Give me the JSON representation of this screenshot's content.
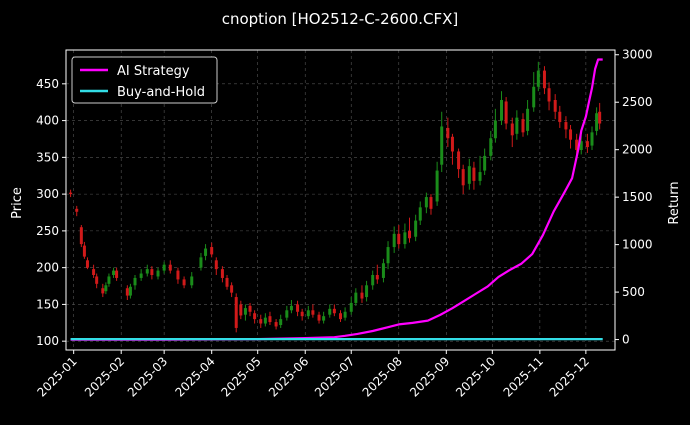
{
  "chart_data": {
    "type": "candlestick+line",
    "title": "cnoption [HO2512-C-2600.CFX]",
    "ylabel_left": "Price",
    "ylabel_right": "Return",
    "ylim_left": [
      88,
      496
    ],
    "ylim_right": [
      -110,
      3050
    ],
    "xlim": [
      "2024-12-27",
      "2025-12-20"
    ],
    "x_ticks": [
      "2025-01",
      "2025-02",
      "2025-03",
      "2025-04",
      "2025-05",
      "2025-06",
      "2025-07",
      "2025-08",
      "2025-09",
      "2025-10",
      "2025-11",
      "2025-12"
    ],
    "y_ticks_left": [
      100,
      150,
      200,
      250,
      300,
      350,
      400,
      450
    ],
    "y_ticks_right": [
      0,
      500,
      1000,
      1500,
      2000,
      2500,
      3000
    ],
    "grid": true,
    "legend_position": "top-left",
    "colors": {
      "up": "#1a8c1a",
      "down": "#d11a1a",
      "strategy": "#ff00ff",
      "buyhold": "#33dde6",
      "grid": "#555555",
      "background": "#000000"
    },
    "series": [
      {
        "name": "AI Strategy",
        "points": [
          [
            "2024-12-30",
            0
          ],
          [
            "2025-03-01",
            0
          ],
          [
            "2025-05-01",
            5
          ],
          [
            "2025-06-01",
            15
          ],
          [
            "2025-06-20",
            25
          ],
          [
            "2025-06-27",
            40
          ],
          [
            "2025-07-05",
            60
          ],
          [
            "2025-07-15",
            90
          ],
          [
            "2025-07-25",
            130
          ],
          [
            "2025-08-01",
            160
          ],
          [
            "2025-08-10",
            175
          ],
          [
            "2025-08-20",
            200
          ],
          [
            "2025-08-28",
            260
          ],
          [
            "2025-09-05",
            330
          ],
          [
            "2025-09-12",
            400
          ],
          [
            "2025-09-20",
            480
          ],
          [
            "2025-09-28",
            560
          ],
          [
            "2025-10-05",
            660
          ],
          [
            "2025-10-12",
            730
          ],
          [
            "2025-10-20",
            800
          ],
          [
            "2025-10-27",
            900
          ],
          [
            "2025-11-03",
            1100
          ],
          [
            "2025-11-10",
            1350
          ],
          [
            "2025-11-17",
            1550
          ],
          [
            "2025-11-22",
            1700
          ],
          [
            "2025-11-26",
            2000
          ],
          [
            "2025-11-28",
            2200
          ],
          [
            "2025-12-01",
            2350
          ],
          [
            "2025-12-03",
            2500
          ],
          [
            "2025-12-05",
            2650
          ],
          [
            "2025-12-07",
            2850
          ],
          [
            "2025-12-09",
            2950
          ],
          [
            "2025-12-12",
            2950
          ]
        ]
      },
      {
        "name": "Buy-and-Hold",
        "points": [
          [
            "2024-12-30",
            5
          ],
          [
            "2025-12-12",
            5
          ]
        ]
      }
    ],
    "candles": [
      [
        "2024-12-30",
        302,
        300,
        306,
        296
      ],
      [
        "2025-01-03",
        280,
        276,
        284,
        270
      ],
      [
        "2025-01-06",
        255,
        232,
        258,
        228
      ],
      [
        "2025-01-08",
        230,
        215,
        235,
        212
      ],
      [
        "2025-01-10",
        210,
        200,
        214,
        198
      ],
      [
        "2025-01-14",
        198,
        190,
        204,
        186
      ],
      [
        "2025-01-16",
        188,
        178,
        192,
        172
      ],
      [
        "2025-01-20",
        172,
        165,
        178,
        160
      ],
      [
        "2025-01-22",
        168,
        176,
        180,
        164
      ],
      [
        "2025-01-24",
        178,
        188,
        192,
        174
      ],
      [
        "2025-01-27",
        190,
        196,
        200,
        186
      ],
      [
        "2025-01-29",
        196,
        186,
        200,
        182
      ],
      [
        "2025-02-05",
        172,
        162,
        176,
        156
      ],
      [
        "2025-02-07",
        162,
        174,
        178,
        158
      ],
      [
        "2025-02-10",
        176,
        186,
        190,
        170
      ],
      [
        "2025-02-14",
        186,
        192,
        198,
        182
      ],
      [
        "2025-02-18",
        192,
        198,
        204,
        188
      ],
      [
        "2025-02-21",
        198,
        190,
        202,
        184
      ],
      [
        "2025-02-25",
        188,
        196,
        200,
        184
      ],
      [
        "2025-03-01",
        196,
        204,
        208,
        192
      ],
      [
        "2025-03-05",
        204,
        196,
        210,
        192
      ],
      [
        "2025-03-10",
        196,
        184,
        200,
        178
      ],
      [
        "2025-03-14",
        184,
        176,
        188,
        172
      ],
      [
        "2025-03-19",
        176,
        188,
        194,
        172
      ],
      [
        "2025-03-25",
        200,
        214,
        220,
        196
      ],
      [
        "2025-03-28",
        216,
        226,
        232,
        210
      ],
      [
        "2025-04-01",
        228,
        218,
        234,
        214
      ],
      [
        "2025-04-04",
        210,
        198,
        214,
        190
      ],
      [
        "2025-04-08",
        198,
        186,
        202,
        180
      ],
      [
        "2025-04-11",
        186,
        174,
        190,
        170
      ],
      [
        "2025-04-14",
        176,
        166,
        180,
        160
      ],
      [
        "2025-04-17",
        160,
        118,
        165,
        112
      ],
      [
        "2025-04-20",
        150,
        135,
        155,
        130
      ],
      [
        "2025-04-23",
        136,
        145,
        150,
        128
      ],
      [
        "2025-04-26",
        148,
        140,
        152,
        134
      ],
      [
        "2025-04-29",
        138,
        130,
        142,
        124
      ],
      [
        "2025-05-03",
        130,
        124,
        136,
        118
      ],
      [
        "2025-05-06",
        124,
        132,
        138,
        120
      ],
      [
        "2025-05-09",
        134,
        126,
        140,
        122
      ],
      [
        "2025-05-13",
        126,
        120,
        130,
        116
      ],
      [
        "2025-05-16",
        122,
        130,
        136,
        118
      ],
      [
        "2025-05-20",
        132,
        142,
        148,
        128
      ],
      [
        "2025-05-23",
        142,
        148,
        156,
        138
      ],
      [
        "2025-05-27",
        150,
        140,
        155,
        134
      ],
      [
        "2025-05-30",
        140,
        134,
        144,
        128
      ],
      [
        "2025-06-03",
        134,
        142,
        148,
        130
      ],
      [
        "2025-06-06",
        142,
        136,
        150,
        132
      ],
      [
        "2025-06-10",
        136,
        128,
        140,
        124
      ],
      [
        "2025-06-13",
        128,
        134,
        140,
        124
      ],
      [
        "2025-06-17",
        136,
        144,
        150,
        132
      ],
      [
        "2025-06-20",
        144,
        138,
        150,
        134
      ],
      [
        "2025-06-24",
        138,
        130,
        142,
        126
      ],
      [
        "2025-06-27",
        132,
        140,
        146,
        128
      ],
      [
        "2025-07-01",
        140,
        152,
        160,
        136
      ],
      [
        "2025-07-04",
        152,
        166,
        172,
        148
      ],
      [
        "2025-07-08",
        166,
        158,
        176,
        152
      ],
      [
        "2025-07-11",
        160,
        176,
        182,
        154
      ],
      [
        "2025-07-15",
        176,
        190,
        196,
        170
      ],
      [
        "2025-07-18",
        190,
        184,
        204,
        178
      ],
      [
        "2025-07-22",
        186,
        206,
        212,
        180
      ],
      [
        "2025-07-25",
        206,
        228,
        236,
        198
      ],
      [
        "2025-07-29",
        228,
        246,
        256,
        220
      ],
      [
        "2025-08-01",
        246,
        232,
        258,
        226
      ],
      [
        "2025-08-05",
        232,
        248,
        260,
        226
      ],
      [
        "2025-08-08",
        250,
        240,
        268,
        234
      ],
      [
        "2025-08-12",
        242,
        264,
        272,
        236
      ],
      [
        "2025-08-15",
        264,
        282,
        290,
        258
      ],
      [
        "2025-08-19",
        282,
        296,
        302,
        274
      ],
      [
        "2025-08-22",
        296,
        280,
        300,
        272
      ],
      [
        "2025-08-26",
        290,
        332,
        344,
        284
      ],
      [
        "2025-08-29",
        340,
        392,
        412,
        330
      ],
      [
        "2025-09-02",
        390,
        376,
        404,
        364
      ],
      [
        "2025-09-05",
        378,
        358,
        382,
        340
      ],
      [
        "2025-09-09",
        358,
        334,
        362,
        322
      ],
      [
        "2025-09-12",
        334,
        312,
        340,
        300
      ],
      [
        "2025-09-16",
        314,
        338,
        348,
        306
      ],
      [
        "2025-09-19",
        336,
        318,
        344,
        306
      ],
      [
        "2025-09-23",
        318,
        330,
        352,
        312
      ],
      [
        "2025-09-26",
        332,
        352,
        362,
        326
      ],
      [
        "2025-09-30",
        352,
        376,
        386,
        346
      ],
      [
        "2025-10-03",
        376,
        400,
        416,
        370
      ],
      [
        "2025-10-07",
        400,
        428,
        440,
        394
      ],
      [
        "2025-10-10",
        426,
        396,
        432,
        388
      ],
      [
        "2025-10-14",
        396,
        380,
        404,
        364
      ],
      [
        "2025-10-17",
        382,
        404,
        414,
        374
      ],
      [
        "2025-10-21",
        402,
        384,
        410,
        378
      ],
      [
        "2025-10-24",
        386,
        416,
        428,
        380
      ],
      [
        "2025-10-28",
        418,
        446,
        466,
        412
      ],
      [
        "2025-10-31",
        446,
        468,
        480,
        440
      ],
      [
        "2025-11-04",
        468,
        444,
        474,
        436
      ],
      [
        "2025-11-07",
        444,
        426,
        452,
        414
      ],
      [
        "2025-11-11",
        428,
        412,
        436,
        402
      ],
      [
        "2025-11-14",
        412,
        398,
        420,
        390
      ],
      [
        "2025-11-18",
        398,
        388,
        406,
        376
      ],
      [
        "2025-11-21",
        388,
        374,
        394,
        362
      ],
      [
        "2025-11-25",
        374,
        360,
        382,
        352
      ],
      [
        "2025-11-28",
        360,
        372,
        380,
        354
      ],
      [
        "2025-12-02",
        372,
        364,
        382,
        356
      ],
      [
        "2025-12-05",
        366,
        384,
        392,
        360
      ],
      [
        "2025-12-08",
        386,
        410,
        418,
        380
      ],
      [
        "2025-12-10",
        412,
        396,
        424,
        388
      ]
    ]
  }
}
